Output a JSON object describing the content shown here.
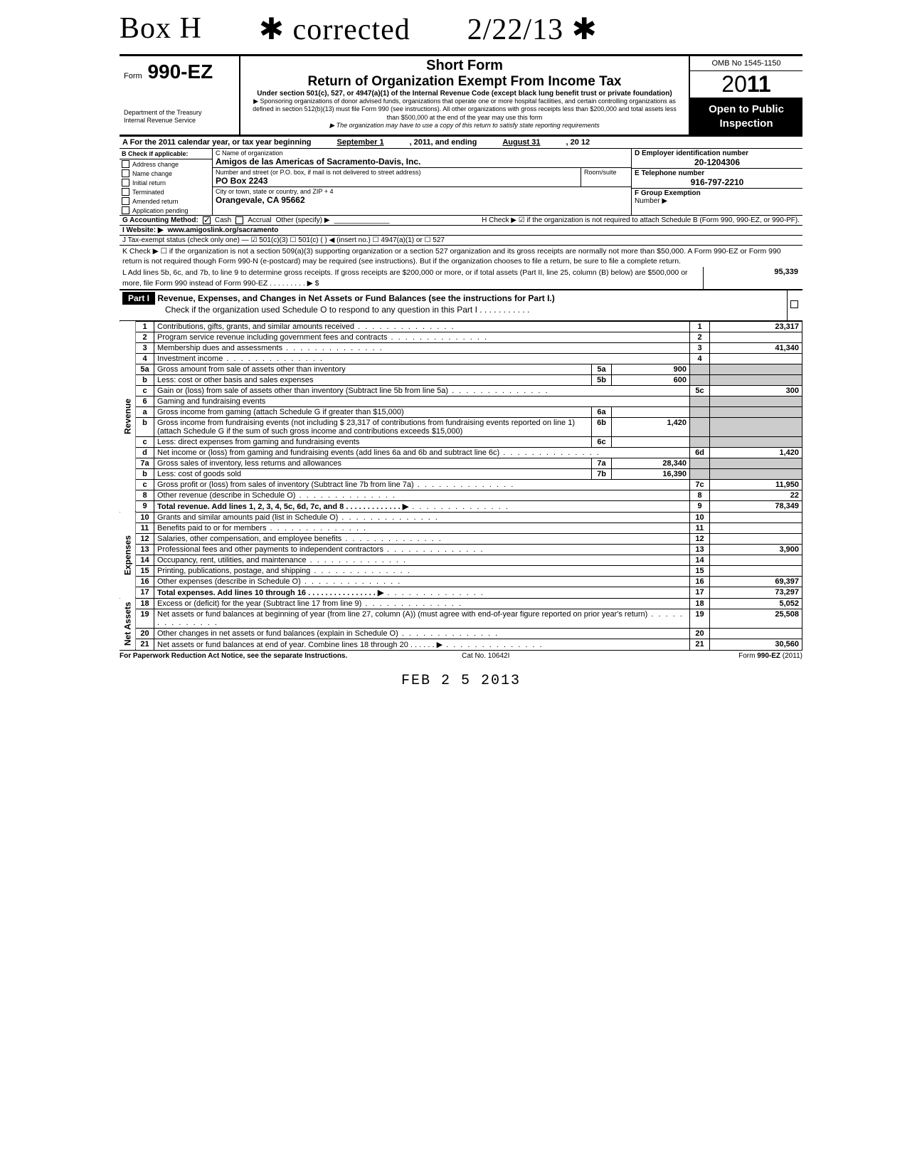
{
  "handwriting": {
    "box": "Box H",
    "corrected": "✱ corrected",
    "date": "2/22/13 ✱"
  },
  "header": {
    "form_label": "Form",
    "form_no": "990-EZ",
    "dept1": "Department of the Treasury",
    "dept2": "Internal Revenue Service",
    "t1": "Short Form",
    "t2": "Return of Organization Exempt From Income Tax",
    "t3": "Under section 501(c), 527, or 4947(a)(1) of the Internal Revenue Code (except black lung benefit trust or private foundation)",
    "t4": "▶ Sponsoring organizations of donor advised funds, organizations that operate one or more hospital facilities, and certain controlling organizations as defined in section 512(b)(13) must file Form 990 (see instructions). All other organizations with gross receipts less than $200,000 and total assets less than $500,000 at the end of the year may use this form",
    "t5": "▶ The organization may have to use a copy of this return to satisfy state reporting requirements",
    "omb": "OMB No 1545-1150",
    "year_prefix": "20",
    "year_bold": "11",
    "open": "Open to Public Inspection"
  },
  "A": {
    "text1": "A For the 2011 calendar year, or tax year beginning",
    "begin": "September 1",
    "mid": ", 2011, and ending",
    "end": "August 31",
    "tail": ", 20   12"
  },
  "B": {
    "label": "B  Check if applicable:",
    "opts": [
      "Address change",
      "Name change",
      "Initial return",
      "Terminated",
      "Amended return",
      "Application pending"
    ]
  },
  "C": {
    "name_lab": "C  Name of organization",
    "name": "Amigos de las Americas of Sacramento-Davis, Inc.",
    "addr_lab": "Number and street (or P.O. box, if mail is not delivered to street address)",
    "room_lab": "Room/suite",
    "addr": "PO Box 2243",
    "city_lab": "City or town, state or country, and ZIP + 4",
    "city": "Orangevale, CA  95662"
  },
  "D": {
    "ein_lab": "D Employer identification number",
    "ein": "20-1204306",
    "tel_lab": "E Telephone number",
    "tel": "916-797-2210",
    "grp_lab": "F Group Exemption",
    "grp2": "Number ▶"
  },
  "G": {
    "lab": "G  Accounting Method:",
    "cash": "Cash",
    "accr": "Accrual",
    "other": "Other (specify) ▶"
  },
  "H": {
    "text": "H  Check ▶ ☑ if the organization is not required to attach Schedule B (Form 990, 990-EZ, or 990-PF)."
  },
  "I": {
    "lab": "I   Website: ▶",
    "val": "www.amigoslink.org/sacramento"
  },
  "J": {
    "text": "J  Tax-exempt status (check only one) — ☑ 501(c)(3)   ☐ 501(c) (      ) ◀ (insert no.) ☐ 4947(a)(1) or   ☐ 527"
  },
  "K": {
    "text": "K  Check ▶  ☐   if the organization is not a section 509(a)(3) supporting organization or a section 527 organization and its gross receipts are normally not more than $50,000. A Form 990-EZ or Form 990 return is not required though Form 990-N (e-postcard) may be required (see instructions). But if the organization chooses to file a return, be sure to file a complete return."
  },
  "L": {
    "text": "L  Add lines 5b, 6c, and 7b, to line 9 to determine gross receipts. If gross receipts are $200,000 or more, or if total assets (Part II, line 25, column (B) below) are $500,000 or more, file Form 990 instead of Form 990-EZ   .    .    .    .    .    .    .    .    .   ▶  $",
    "amt": "95,339"
  },
  "part1": {
    "tag": "Part I",
    "title": "Revenue, Expenses, and Changes in Net Assets or Fund Balances (see the instructions for Part I.)",
    "sub": "Check if the organization used Schedule O to respond to any question in this Part I  .   .   .   .   .   .   .   .   .   .   ."
  },
  "sections": {
    "rev": "Revenue",
    "exp": "Expenses",
    "na": "Net Assets"
  },
  "rows": [
    {
      "n": "1",
      "d": "Contributions, gifts, grants, and similar amounts received",
      "rn": "1",
      "amt": "23,317"
    },
    {
      "n": "2",
      "d": "Program service revenue including government fees and contracts",
      "rn": "2",
      "amt": ""
    },
    {
      "n": "3",
      "d": "Membership dues and assessments",
      "rn": "3",
      "amt": "41,340"
    },
    {
      "n": "4",
      "d": "Investment income",
      "rn": "4",
      "amt": ""
    },
    {
      "n": "5a",
      "d": "Gross amount from sale of assets other than inventory",
      "sub": "5a",
      "subamt": "900"
    },
    {
      "n": "b",
      "d": "Less: cost or other basis and sales expenses",
      "sub": "5b",
      "subamt": "600"
    },
    {
      "n": "c",
      "d": "Gain or (loss) from sale of assets other than inventory (Subtract line 5b from line 5a)",
      "rn": "5c",
      "amt": "300"
    },
    {
      "n": "6",
      "d": "Gaming and fundraising events"
    },
    {
      "n": "a",
      "d": "Gross income from gaming (attach Schedule G if greater than $15,000)",
      "sub": "6a",
      "subamt": ""
    },
    {
      "n": "b",
      "d": "Gross income from fundraising events (not including  $            23,317 of contributions from fundraising events reported on line 1) (attach Schedule G if the sum of such gross income and contributions exceeds $15,000)",
      "sub": "6b",
      "subamt": "1,420"
    },
    {
      "n": "c",
      "d": "Less: direct expenses from gaming and fundraising events",
      "sub": "6c",
      "subamt": ""
    },
    {
      "n": "d",
      "d": "Net income or (loss) from gaming and fundraising events (add lines 6a and 6b and subtract line 6c)",
      "rn": "6d",
      "amt": "1,420"
    },
    {
      "n": "7a",
      "d": "Gross sales of inventory, less returns and allowances",
      "sub": "7a",
      "subamt": "28,340"
    },
    {
      "n": "b",
      "d": "Less: cost of goods sold",
      "sub": "7b",
      "subamt": "16,390"
    },
    {
      "n": "c",
      "d": "Gross profit or (loss) from sales of inventory (Subtract line 7b from line 7a)",
      "rn": "7c",
      "amt": "11,950"
    },
    {
      "n": "8",
      "d": "Other revenue (describe in Schedule O)",
      "rn": "8",
      "amt": "22"
    },
    {
      "n": "9",
      "d": "Total revenue. Add lines 1, 2, 3, 4, 5c, 6d, 7c, and 8   .   .   .   .   .   .   .   .   .   .   .   .   .  ▶",
      "rn": "9",
      "amt": "78,349",
      "bold": true
    },
    {
      "n": "10",
      "d": "Grants and similar amounts paid (list in Schedule O)",
      "rn": "10",
      "amt": ""
    },
    {
      "n": "11",
      "d": "Benefits paid to or for members",
      "rn": "11",
      "amt": ""
    },
    {
      "n": "12",
      "d": "Salaries, other compensation, and employee benefits",
      "rn": "12",
      "amt": ""
    },
    {
      "n": "13",
      "d": "Professional fees and other payments to independent contractors",
      "rn": "13",
      "amt": "3,900"
    },
    {
      "n": "14",
      "d": "Occupancy, rent, utilities, and maintenance",
      "rn": "14",
      "amt": ""
    },
    {
      "n": "15",
      "d": "Printing, publications, postage, and shipping",
      "rn": "15",
      "amt": ""
    },
    {
      "n": "16",
      "d": "Other expenses (describe in Schedule O)",
      "rn": "16",
      "amt": "69,397"
    },
    {
      "n": "17",
      "d": "Total expenses. Add lines 10 through 16   .   .   .   .   .   .   .   .   .   .   .   .   .   .   .   .  ▶",
      "rn": "17",
      "amt": "73,297",
      "bold": true
    },
    {
      "n": "18",
      "d": "Excess or (deficit) for the year (Subtract line 17 from line 9)",
      "rn": "18",
      "amt": "5,052"
    },
    {
      "n": "19",
      "d": "Net assets or fund balances at beginning of year (from line 27, column (A)) (must agree with end-of-year figure reported on prior year's return)",
      "rn": "19",
      "amt": "25,508"
    },
    {
      "n": "20",
      "d": "Other changes in net assets or fund balances (explain in Schedule O)",
      "rn": "20",
      "amt": ""
    },
    {
      "n": "21",
      "d": "Net assets or fund balances at end of year. Combine lines 18 through 20   .   .   .   .   .   .  ▶",
      "rn": "21",
      "amt": "30,560"
    }
  ],
  "footer": {
    "l": "For Paperwork Reduction Act Notice, see the separate Instructions.",
    "m": "Cat  No. 10642I",
    "r": "Form 990-EZ (2011)"
  },
  "stamp": "FEB  2 5  2013"
}
